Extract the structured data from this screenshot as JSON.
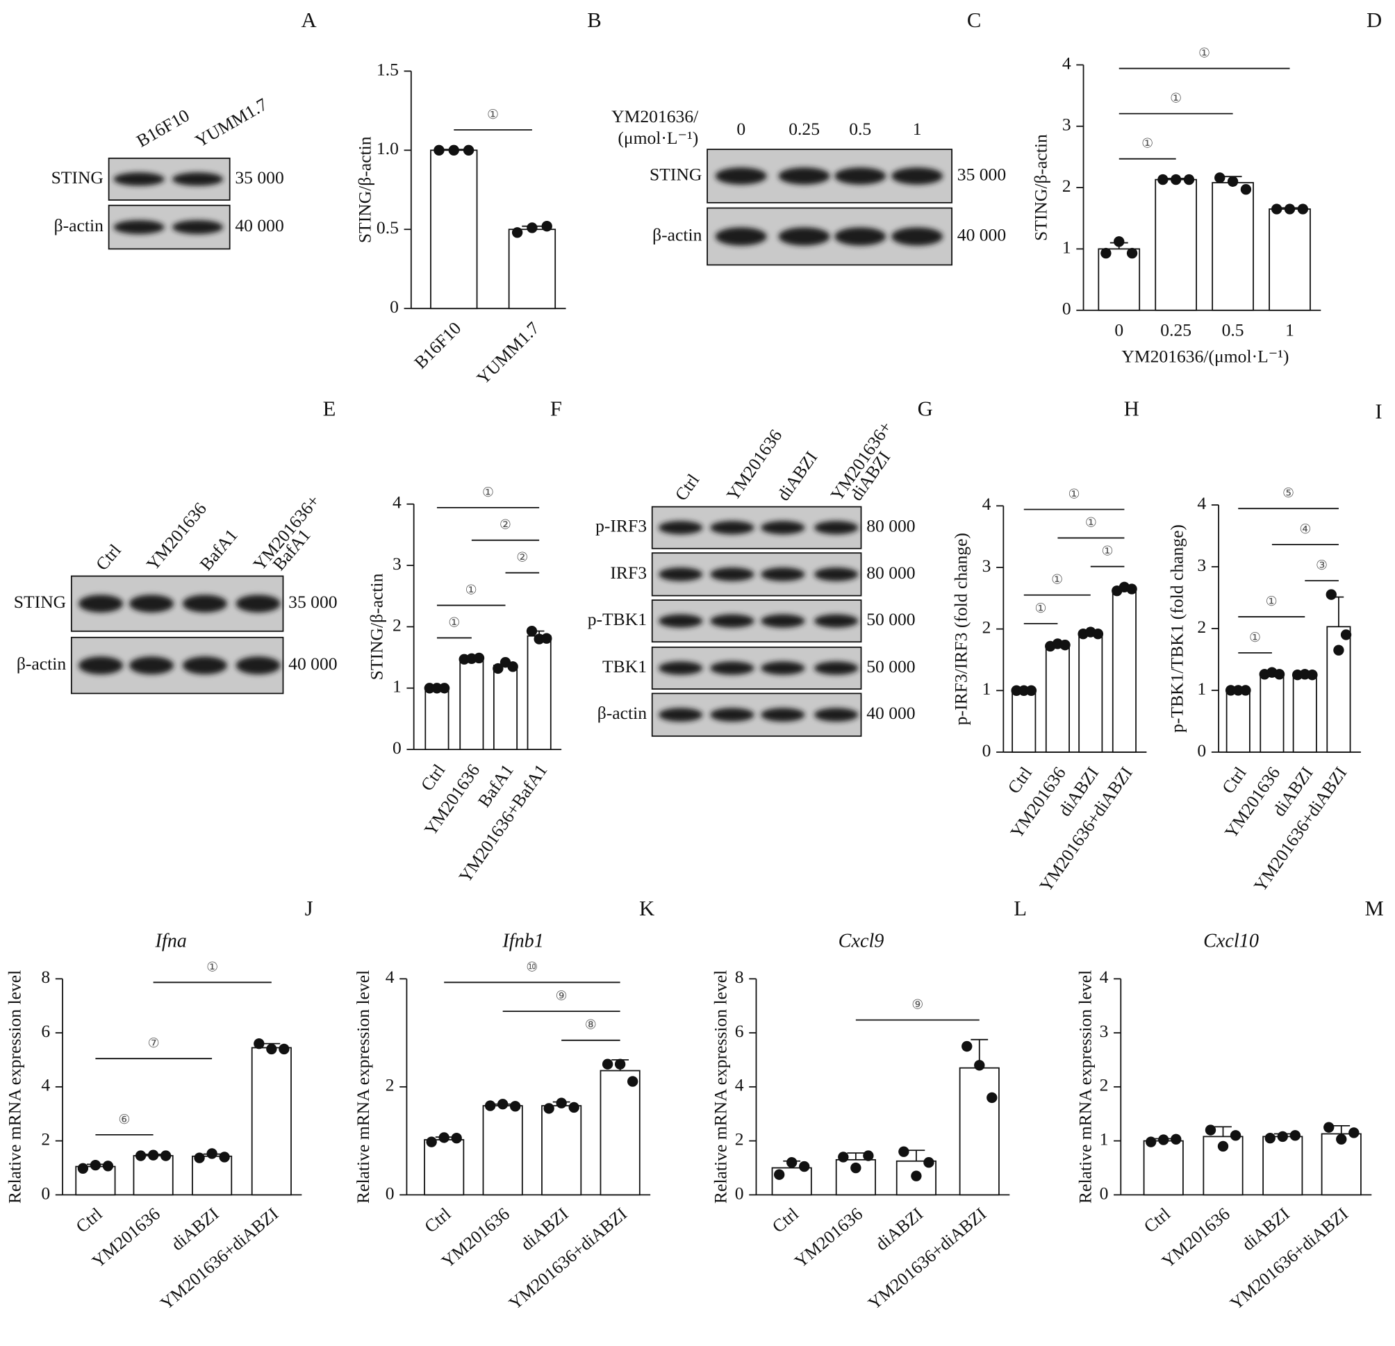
{
  "chart_data": [
    {
      "type": "bar",
      "panel": "B",
      "ylabel": "STING/β-actin",
      "categories": [
        "B16F10",
        "YUMM1.7"
      ],
      "values": [
        1.0,
        0.5
      ],
      "errors": [
        0.005,
        0.02
      ],
      "points": [
        [
          1,
          1,
          1
        ],
        [
          0.48,
          0.51,
          0.52
        ]
      ],
      "ylim": [
        0,
        1.5
      ],
      "yticks": [
        0,
        0.5,
        {
          "value": 1,
          "label": "1.0"
        },
        1.5
      ],
      "brackets": [
        {
          "from": 0,
          "to": 1,
          "label": "①"
        }
      ]
    },
    {
      "type": "bar",
      "panel": "D",
      "ylabel": "STING/β-actin",
      "xlabel": "YM201636/(μmol·L⁻¹)",
      "categories": [
        "0",
        "0.25",
        "0.5",
        "1"
      ],
      "values": [
        1,
        2.13,
        2.08,
        1.65
      ],
      "errors": [
        0.1,
        0.02,
        0.1,
        0.02
      ],
      "points": [
        [
          0.93,
          1.12,
          0.93
        ],
        [
          2.13,
          2.13,
          2.13
        ],
        [
          2.16,
          2.1,
          1.97
        ],
        [
          1.65,
          1.65,
          1.65
        ]
      ],
      "ylim": [
        0,
        4
      ],
      "yticks": [
        0,
        1,
        2,
        3,
        4
      ],
      "brackets": [
        {
          "from": 0,
          "to": 1,
          "label": "①"
        },
        {
          "from": 0,
          "to": 2,
          "label": "①"
        },
        {
          "from": 0,
          "to": 3,
          "label": "①"
        }
      ]
    },
    {
      "type": "bar",
      "panel": "F",
      "ylabel": "STING/β-actin",
      "categories": [
        "Ctrl",
        "YM201636",
        "BafA1",
        "YM201636+BafA1"
      ],
      "values": [
        1,
        1.48,
        1.37,
        1.85
      ],
      "errors": [
        0.01,
        0.02,
        0.06,
        0.08
      ],
      "points": [
        [
          1,
          1,
          1
        ],
        [
          1.47,
          1.48,
          1.49
        ],
        [
          1.32,
          1.42,
          1.35
        ],
        [
          1.93,
          1.8,
          1.81
        ]
      ],
      "ylim": [
        0,
        4
      ],
      "yticks": [
        0,
        1,
        2,
        3,
        4
      ],
      "brackets": [
        {
          "from": 0,
          "to": 1,
          "label": "①"
        },
        {
          "from": 0,
          "to": 2,
          "label": "①"
        },
        {
          "from": 2,
          "to": 3,
          "label": "②"
        },
        {
          "from": 1,
          "to": 3,
          "label": "②"
        },
        {
          "from": 0,
          "to": 3,
          "label": "①"
        }
      ]
    },
    {
      "type": "bar",
      "panel": "H",
      "ylabel": "p-IRF3/IRF3 (fold change)",
      "categories": [
        "Ctrl",
        "YM201636",
        "diABZI",
        "YM201636+diABZI"
      ],
      "values": [
        1,
        1.74,
        1.93,
        2.65
      ],
      "errors": [
        0.01,
        0.03,
        0.02,
        0.04
      ],
      "points": [
        [
          1,
          1,
          1
        ],
        [
          1.72,
          1.76,
          1.74
        ],
        [
          1.92,
          1.95,
          1.92
        ],
        [
          2.62,
          2.68,
          2.65
        ]
      ],
      "ylim": [
        0,
        4
      ],
      "yticks": [
        0,
        1,
        2,
        3,
        4
      ],
      "brackets": [
        {
          "from": 0,
          "to": 1,
          "label": "①"
        },
        {
          "from": 0,
          "to": 2,
          "label": "①"
        },
        {
          "from": 2,
          "to": 3,
          "label": "①"
        },
        {
          "from": 1,
          "to": 3,
          "label": "①"
        },
        {
          "from": 0,
          "to": 3,
          "label": "①"
        }
      ]
    },
    {
      "type": "bar",
      "panel": "I",
      "ylabel": "p-TBK1/TBK1 (fold change)",
      "categories": [
        "Ctrl",
        "YM201636",
        "diABZI",
        "YM201636+diABZI"
      ],
      "values": [
        1,
        1.27,
        1.25,
        2.03
      ],
      "errors": [
        0.01,
        0.02,
        0.02,
        0.48
      ],
      "points": [
        [
          1,
          1,
          1
        ],
        [
          1.26,
          1.29,
          1.26
        ],
        [
          1.25,
          1.26,
          1.25
        ],
        [
          2.55,
          1.65,
          1.9
        ]
      ],
      "ylim": [
        0,
        4
      ],
      "yticks": [
        0,
        1,
        2,
        3,
        4
      ],
      "brackets": [
        {
          "from": 0,
          "to": 1,
          "label": "①"
        },
        {
          "from": 0,
          "to": 2,
          "label": "①"
        },
        {
          "from": 2,
          "to": 3,
          "label": "③"
        },
        {
          "from": 1,
          "to": 3,
          "label": "④"
        },
        {
          "from": 0,
          "to": 3,
          "label": "⑤"
        }
      ]
    },
    {
      "type": "bar",
      "panel": "J",
      "title": "Ifna",
      "ylabel": "Relative mRNA expression level",
      "categories": [
        "Ctrl",
        "YM201636",
        "diABZI",
        "YM201636+diABZI"
      ],
      "values": [
        1.05,
        1.45,
        1.43,
        5.45
      ],
      "errors": [
        0.08,
        0.05,
        0.08,
        0.15
      ],
      "points": [
        [
          0.98,
          1.1,
          1.07
        ],
        [
          1.45,
          1.47,
          1.45
        ],
        [
          1.37,
          1.53,
          1.4
        ],
        [
          5.6,
          5.4,
          5.4
        ]
      ],
      "ylim": [
        0,
        8
      ],
      "yticks": [
        0,
        2,
        4,
        6,
        8
      ],
      "brackets": [
        {
          "from": 0,
          "to": 1,
          "label": "⑥"
        },
        {
          "from": 0,
          "to": 2,
          "label": "⑦"
        },
        {
          "from": 1,
          "to": 3,
          "label": "①"
        }
      ]
    },
    {
      "type": "bar",
      "panel": "K",
      "title": "Ifnb1",
      "ylabel": "Relative mRNA expression level",
      "categories": [
        "Ctrl",
        "YM201636",
        "diABZI",
        "YM201636+diABZI"
      ],
      "values": [
        1.02,
        1.65,
        1.65,
        2.3
      ],
      "errors": [
        0.05,
        0.03,
        0.07,
        0.2
      ],
      "points": [
        [
          0.98,
          1.06,
          1.05
        ],
        [
          1.65,
          1.68,
          1.64
        ],
        [
          1.6,
          1.7,
          1.62
        ],
        [
          2.42,
          2.42,
          2.1
        ]
      ],
      "ylim": [
        0,
        4
      ],
      "yticks": [
        0,
        2,
        4
      ],
      "brackets": [
        {
          "from": 2,
          "to": 3,
          "label": "⑧"
        },
        {
          "from": 1,
          "to": 3,
          "label": "⑨"
        },
        {
          "from": 0,
          "to": 3,
          "label": "⑩"
        }
      ]
    },
    {
      "type": "bar",
      "panel": "L",
      "title": "Cxcl9",
      "ylabel": "Relative mRNA expression level",
      "categories": [
        "Ctrl",
        "YM201636",
        "diABZI",
        "YM201636+diABZI"
      ],
      "values": [
        1,
        1.3,
        1.25,
        4.7
      ],
      "errors": [
        0.25,
        0.25,
        0.4,
        1.05
      ],
      "points": [
        [
          0.75,
          1.2,
          1.05
        ],
        [
          1.4,
          1.0,
          1.45
        ],
        [
          1.6,
          0.7,
          1.2
        ],
        [
          5.5,
          4.8,
          3.6
        ]
      ],
      "ylim": [
        0,
        8
      ],
      "yticks": [
        0,
        2,
        4,
        6,
        8
      ],
      "brackets": [
        {
          "from": 1,
          "to": 3,
          "label": "⑨"
        }
      ]
    },
    {
      "type": "bar",
      "panel": "M",
      "title": "Cxcl10",
      "ylabel": "Relative mRNA expression level",
      "categories": [
        "Ctrl",
        "YM201636",
        "diABZI",
        "YM201636+diABZI"
      ],
      "values": [
        1.0,
        1.08,
        1.08,
        1.13
      ],
      "errors": [
        0.04,
        0.18,
        0.05,
        0.15
      ],
      "points": [
        [
          0.98,
          1.02,
          1.03
        ],
        [
          1.2,
          0.9,
          1.1
        ],
        [
          1.05,
          1.08,
          1.1
        ],
        [
          1.25,
          1.03,
          1.15
        ]
      ],
      "ylim": [
        0,
        4
      ],
      "yticks": [
        0,
        1,
        2,
        3,
        4
      ],
      "brackets": []
    }
  ],
  "blots": [
    {
      "panel": "A",
      "lanes": [
        [
          "B16F10"
        ],
        [
          "YUMM1.7"
        ]
      ],
      "rows": [
        {
          "name": "STING",
          "mw": "35 000"
        },
        {
          "name": "β-actin",
          "mw": "40 000"
        }
      ]
    },
    {
      "panel": "C",
      "header": [
        "YM201636/",
        "(μmol·L⁻¹)"
      ],
      "lanes": [
        [
          "0"
        ],
        [
          "0.25"
        ],
        [
          "0.5"
        ],
        [
          "1"
        ]
      ],
      "rows": [
        {
          "name": "STING",
          "mw": "35 000"
        },
        {
          "name": "β-actin",
          "mw": "40 000"
        }
      ]
    },
    {
      "panel": "E",
      "lanes": [
        [
          "Ctrl"
        ],
        [
          "YM201636"
        ],
        [
          "BafA1"
        ],
        [
          "YM201636+",
          "BafA1"
        ]
      ],
      "rows": [
        {
          "name": "STING",
          "mw": "35 000"
        },
        {
          "name": "β-actin",
          "mw": "40 000"
        }
      ]
    },
    {
      "panel": "G",
      "lanes": [
        [
          "Ctrl"
        ],
        [
          "YM201636"
        ],
        [
          "diABZI"
        ],
        [
          "YM201636+",
          "diABZI"
        ]
      ],
      "rows": [
        {
          "name": "p-IRF3",
          "mw": "80 000"
        },
        {
          "name": "IRF3",
          "mw": "80 000"
        },
        {
          "name": "p-TBK1",
          "mw": "50 000"
        },
        {
          "name": "TBK1",
          "mw": "50 000"
        },
        {
          "name": "β-actin",
          "mw": "40 000"
        }
      ]
    }
  ]
}
